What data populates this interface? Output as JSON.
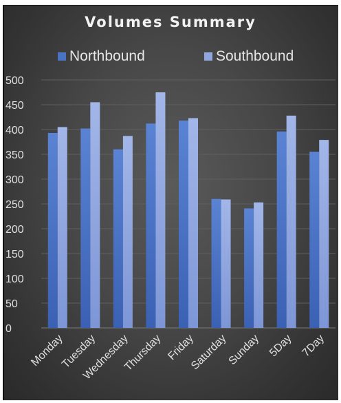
{
  "chart_data": {
    "type": "bar",
    "title": "Volumes Summary",
    "categories": [
      "Monday",
      "Tuesday",
      "Wednesday",
      "Thursday",
      "Friday",
      "Saturday",
      "Sunday",
      "5Day",
      "7Day"
    ],
    "series": [
      {
        "name": "Northbound",
        "color": "#4a73c4",
        "values": [
          393,
          402,
          360,
          412,
          418,
          260,
          241,
          396,
          355
        ]
      },
      {
        "name": "Southbound",
        "color": "#8fa6de",
        "values": [
          405,
          455,
          387,
          475,
          423,
          259,
          253,
          428,
          379
        ]
      }
    ],
    "yticks": [
      "0",
      "50",
      "100",
      "150",
      "200",
      "250",
      "300",
      "350",
      "400",
      "450",
      "500"
    ],
    "ylim": [
      0,
      500
    ],
    "grid": true,
    "legend_position": "top"
  }
}
